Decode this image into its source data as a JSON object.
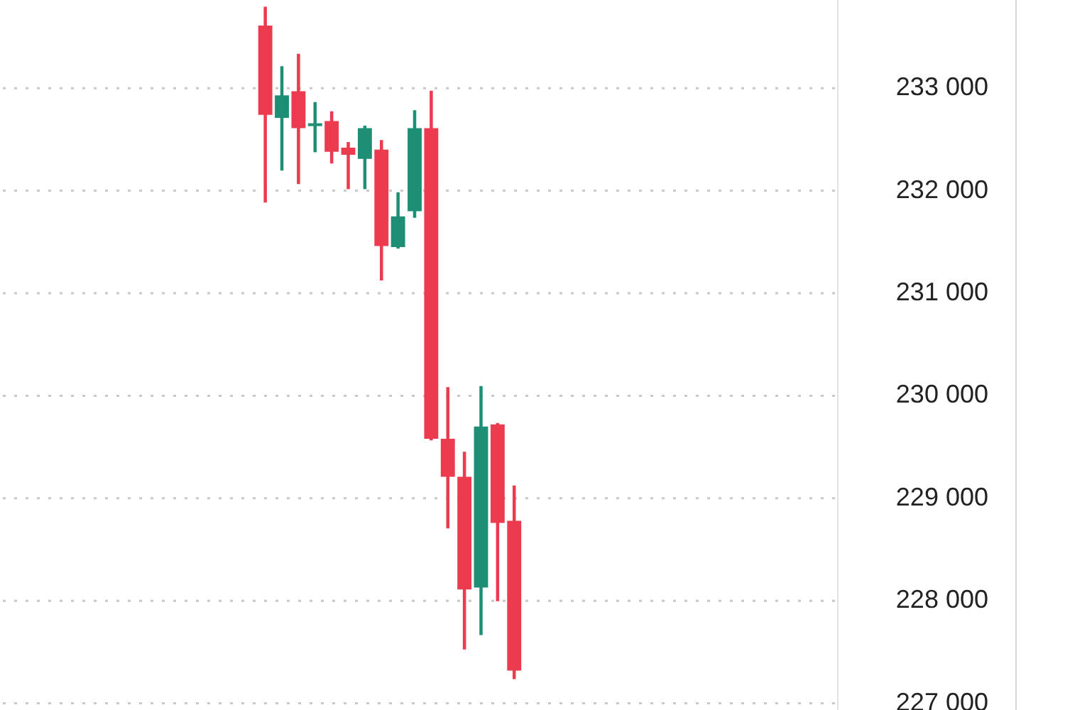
{
  "chart_data": {
    "type": "candlestick",
    "categories": [
      null,
      null,
      null,
      null,
      null,
      null,
      null,
      null,
      null,
      null,
      null,
      null,
      null,
      null,
      null,
      null,
      null,
      null,
      null,
      null,
      null,
      null,
      null,
      null,
      null,
      null,
      null,
      null,
      null,
      null,
      null,
      null,
      null,
      null,
      null,
      null,
      null,
      null,
      null,
      null,
      null,
      null,
      null,
      null,
      null,
      null,
      null,
      null,
      null,
      null,
      null
    ],
    "ohlc": [
      null,
      null,
      null,
      null,
      null,
      null,
      null,
      null,
      null,
      null,
      null,
      null,
      null,
      null,
      null,
      null,
      [
        233610,
        233790,
        231890,
        232740
      ],
      [
        232710,
        233210,
        232200,
        232930
      ],
      [
        232970,
        233330,
        232070,
        232610
      ],
      [
        232630,
        232860,
        232380,
        232640
      ],
      [
        232680,
        232770,
        232270,
        232380
      ],
      [
        232420,
        232470,
        232020,
        232350
      ],
      [
        232310,
        232630,
        232020,
        232610
      ],
      [
        232400,
        232490,
        231130,
        231460
      ],
      [
        231450,
        231980,
        231440,
        231750
      ],
      [
        231800,
        232780,
        231740,
        232610
      ],
      [
        232610,
        232970,
        229570,
        229580
      ],
      [
        229580,
        230080,
        228710,
        229210
      ],
      [
        229210,
        229450,
        227530,
        228110
      ],
      [
        228130,
        230090,
        227670,
        229700
      ],
      [
        229720,
        229730,
        228000,
        228760
      ],
      [
        228780,
        229120,
        227240,
        227320
      ],
      null,
      null,
      null,
      null,
      null,
      null,
      null,
      null,
      null,
      null,
      null,
      null,
      null,
      null,
      null,
      null,
      null,
      null,
      null
    ],
    "colors": [
      null,
      null,
      null,
      null,
      null,
      null,
      null,
      null,
      null,
      null,
      null,
      null,
      null,
      null,
      null,
      null,
      "#ec3b4e",
      "#1e8f74",
      "#ec3b4e",
      "#1e8f74",
      "#ec3b4e",
      "#ec3b4e",
      "#1e8f74",
      "#ec3b4e",
      "#1e8f74",
      "#1e8f74",
      "#ec3b4e",
      "#ec3b4e",
      "#ec3b4e",
      "#1e8f74",
      "#ec3b4e",
      "#ec3b4e",
      null,
      null,
      null,
      null,
      null,
      null,
      null,
      null,
      null,
      null,
      null,
      null,
      null,
      null,
      null,
      null,
      null,
      null,
      null
    ],
    "ylim": [
      226935,
      233860
    ],
    "yticks": [
      {
        "value": 227000,
        "label": "227 000"
      },
      {
        "value": 228000,
        "label": "228 000"
      },
      {
        "value": 229000,
        "label": "229 000"
      },
      {
        "value": 230000,
        "label": "230 000"
      },
      {
        "value": 231000,
        "label": "231 000"
      },
      {
        "value": 232000,
        "label": "232 000"
      },
      {
        "value": 233000,
        "label": "233 000"
      }
    ],
    "grid": "y",
    "tick_labels": "y"
  }
}
